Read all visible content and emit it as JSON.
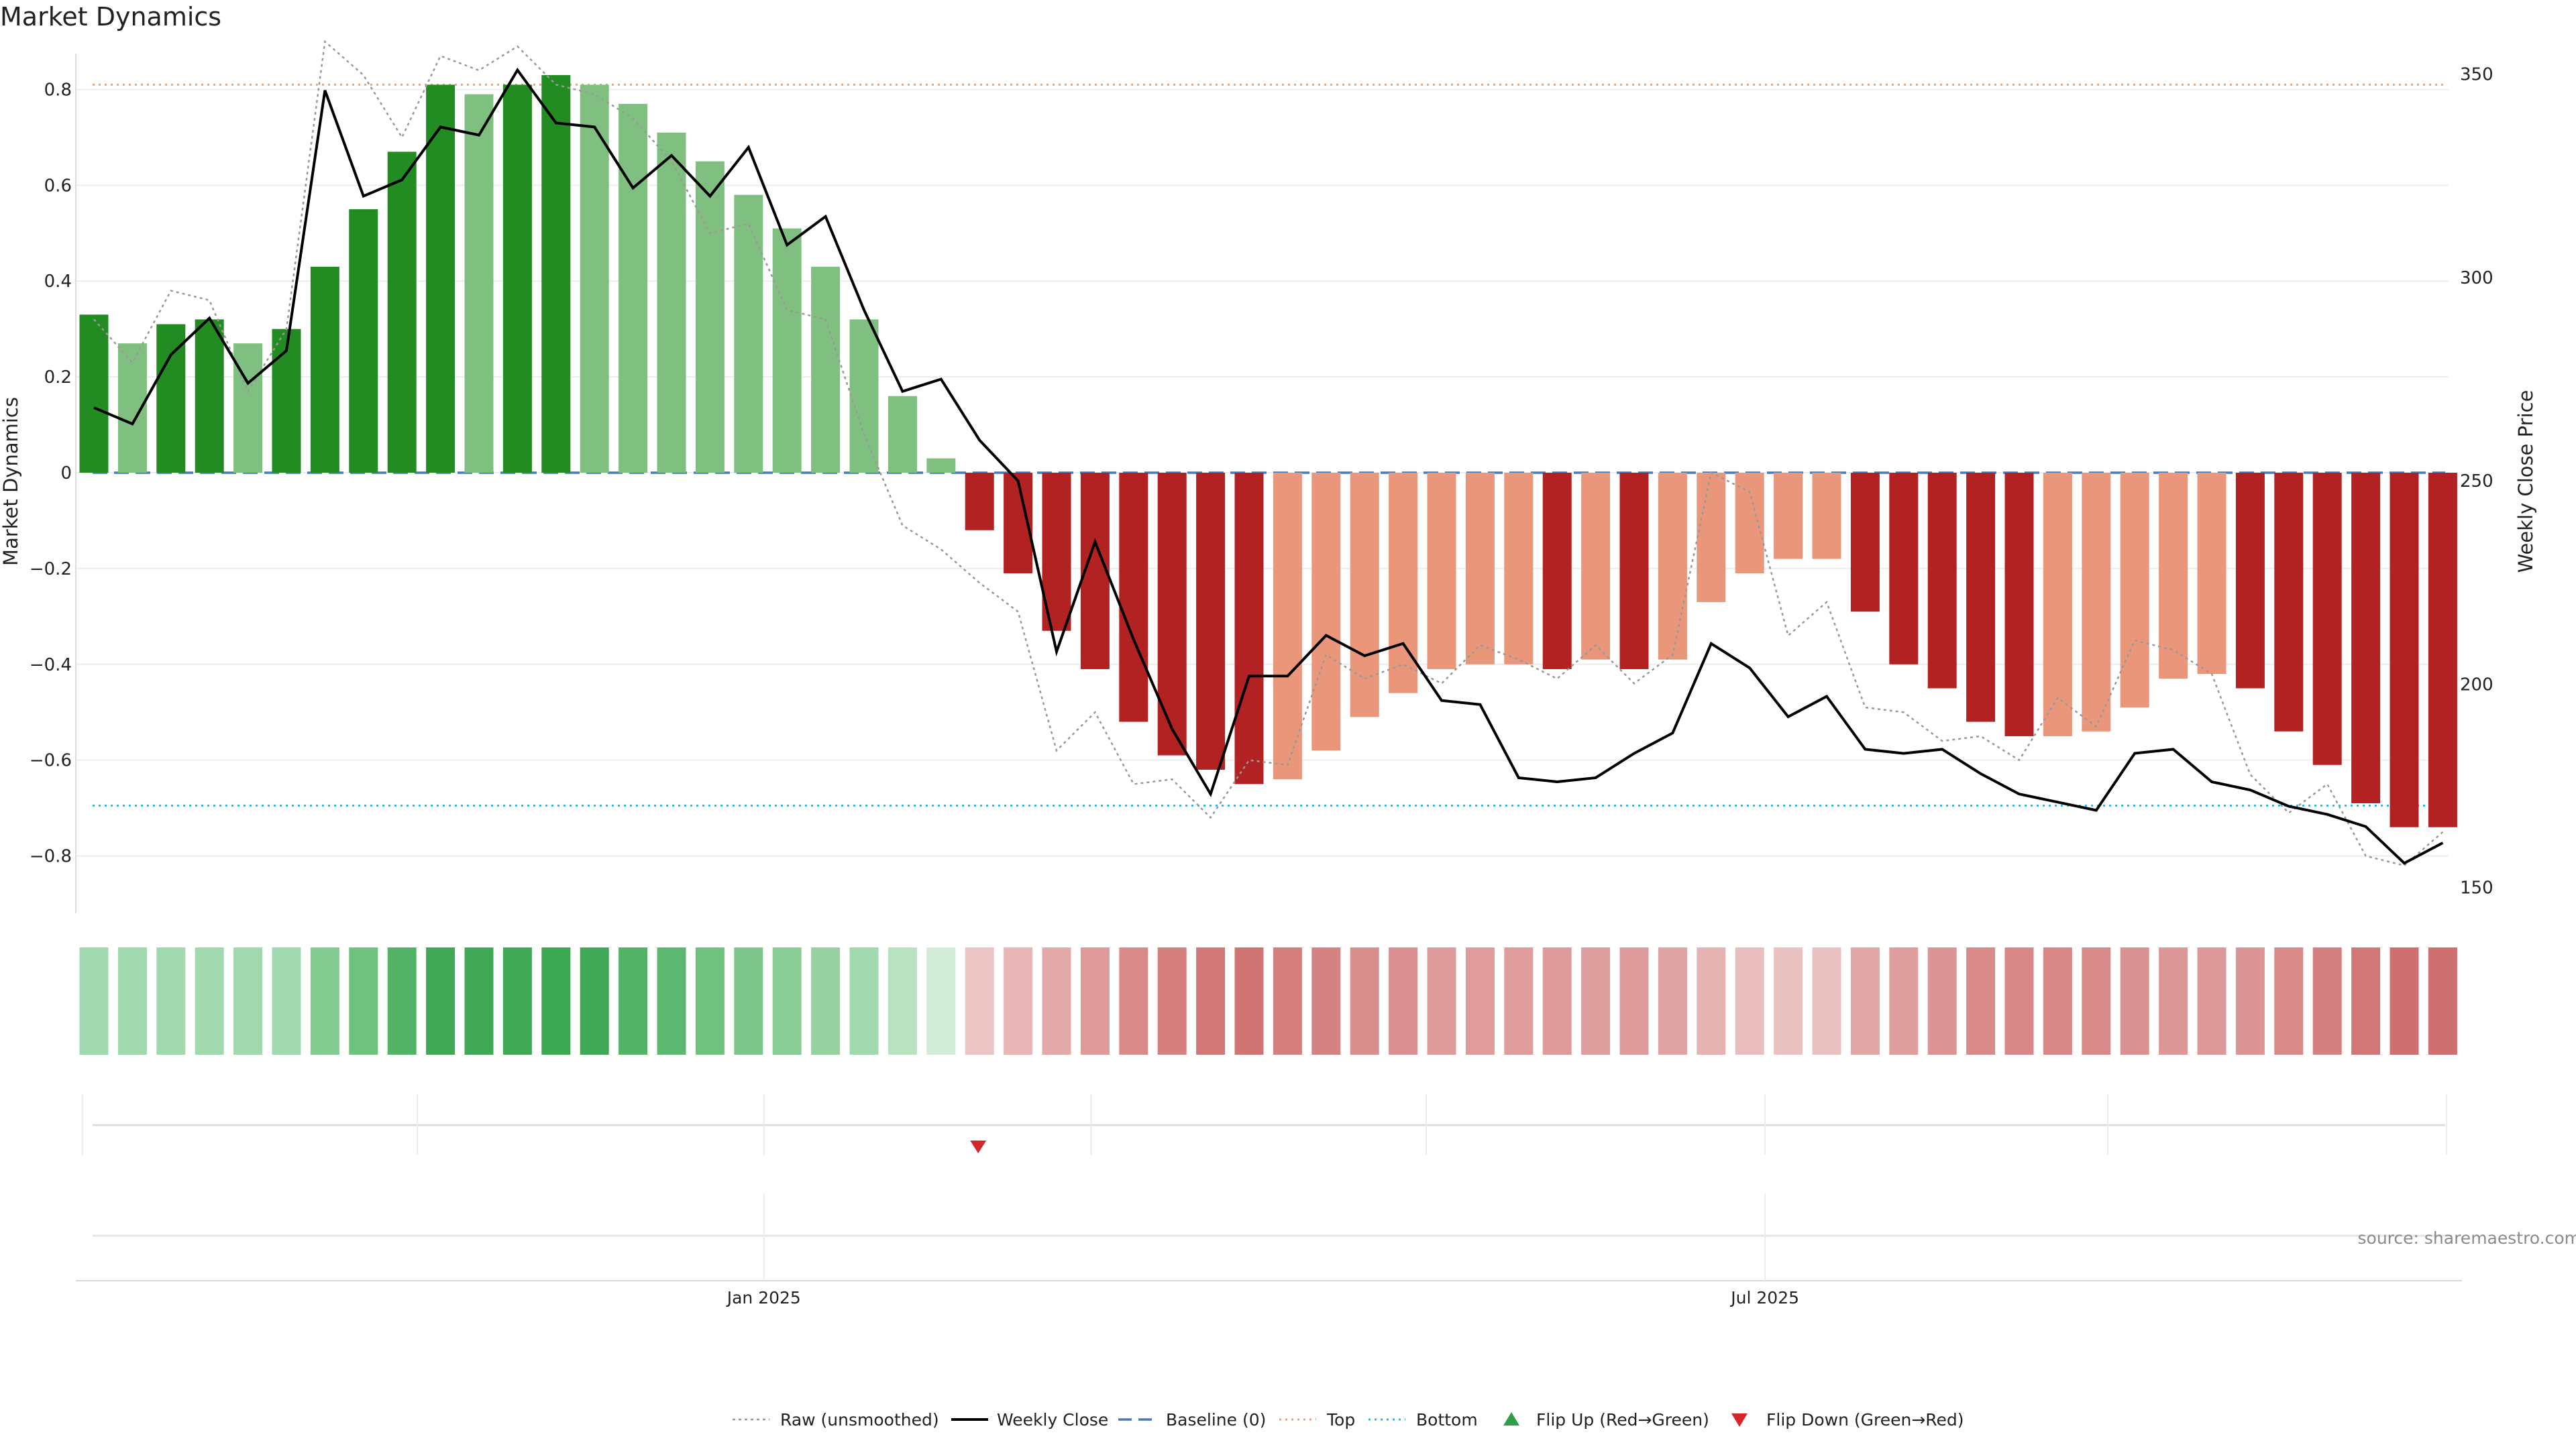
{
  "chart_data": {
    "type": "bar",
    "title": "Market Dynamics",
    "ylabel": "Market Dynamics",
    "y2label": "Weekly Close Price",
    "ylim": [
      -0.9,
      0.9
    ],
    "y2lim": [
      146,
      358
    ],
    "yticks": [
      -0.8,
      -0.6,
      -0.4,
      -0.2,
      0,
      0.2,
      0.4,
      0.6,
      0.8
    ],
    "ytick_labels": [
      "−0.8",
      "−0.6",
      "−0.4",
      "−0.2",
      "0",
      "0.2",
      "0.4",
      "0.6",
      "0.8"
    ],
    "y2ticks": [
      150,
      200,
      250,
      300,
      350
    ],
    "y2tick_labels": [
      "150",
      "200",
      "250",
      "300",
      "350"
    ],
    "x_tick_labels": [
      {
        "label": "Jan 2025",
        "index": 17.4
      },
      {
        "label": "Jul 2025",
        "index": 43.4
      }
    ],
    "monthly_gridline_positions": [
      -0.3,
      8.4,
      17.4,
      25.9,
      34.6,
      43.4,
      52.3,
      61.1
    ],
    "top_threshold": 0.81,
    "bottom_threshold": -0.695,
    "baseline": 0,
    "values": [
      0.33,
      0.27,
      0.31,
      0.32,
      0.27,
      0.3,
      0.43,
      0.55,
      0.67,
      0.81,
      0.79,
      0.81,
      0.83,
      0.81,
      0.77,
      0.71,
      0.65,
      0.58,
      0.51,
      0.43,
      0.32,
      0.16,
      0.03,
      -0.12,
      -0.21,
      -0.33,
      -0.41,
      -0.52,
      -0.59,
      -0.62,
      -0.65,
      -0.64,
      -0.58,
      -0.51,
      -0.46,
      -0.41,
      -0.4,
      -0.4,
      -0.41,
      -0.39,
      -0.41,
      -0.39,
      -0.27,
      -0.21,
      -0.18,
      -0.18,
      -0.29,
      -0.4,
      -0.45,
      -0.52,
      -0.55,
      -0.55,
      -0.54,
      -0.49,
      -0.43,
      -0.42,
      -0.45,
      -0.54,
      -0.61,
      -0.69,
      -0.74,
      -0.74
    ],
    "bar_colors": [
      "#228b22",
      "#7fbf7f",
      "#228b22",
      "#228b22",
      "#7fbf7f",
      "#228b22",
      "#228b22",
      "#228b22",
      "#228b22",
      "#228b22",
      "#7fbf7f",
      "#228b22",
      "#228b22",
      "#7fbf7f",
      "#7fbf7f",
      "#7fbf7f",
      "#7fbf7f",
      "#7fbf7f",
      "#7fbf7f",
      "#7fbf7f",
      "#7fbf7f",
      "#7fbf7f",
      "#7fbf7f",
      "#b22222",
      "#b22222",
      "#b22222",
      "#b22222",
      "#b22222",
      "#b22222",
      "#b22222",
      "#b22222",
      "#e9967a",
      "#e9967a",
      "#e9967a",
      "#e9967a",
      "#e9967a",
      "#e9967a",
      "#e9967a",
      "#b22222",
      "#e9967a",
      "#b22222",
      "#e9967a",
      "#e9967a",
      "#e9967a",
      "#e9967a",
      "#e9967a",
      "#b22222",
      "#b22222",
      "#b22222",
      "#b22222",
      "#b22222",
      "#e9967a",
      "#e9967a",
      "#e9967a",
      "#e9967a",
      "#e9967a",
      "#b22222",
      "#b22222",
      "#b22222",
      "#b22222",
      "#b22222",
      "#b22222"
    ],
    "raw_values": [
      0.32,
      0.23,
      0.38,
      0.36,
      0.17,
      0.3,
      0.9,
      0.83,
      0.7,
      0.87,
      0.84,
      0.89,
      0.81,
      0.79,
      0.74,
      0.65,
      0.5,
      0.52,
      0.34,
      0.32,
      0.08,
      -0.11,
      -0.16,
      -0.23,
      -0.29,
      -0.58,
      -0.5,
      -0.65,
      -0.64,
      -0.72,
      -0.6,
      -0.61,
      -0.38,
      -0.43,
      -0.4,
      -0.44,
      -0.36,
      -0.39,
      -0.43,
      -0.36,
      -0.44,
      -0.38,
      -0.0,
      -0.04,
      -0.34,
      -0.27,
      -0.49,
      -0.5,
      -0.56,
      -0.55,
      -0.6,
      -0.47,
      -0.53,
      -0.35,
      -0.37,
      -0.42,
      -0.63,
      -0.71,
      -0.65,
      -0.8,
      -0.82,
      -0.75
    ],
    "weekly_close": [
      268,
      264,
      281,
      290,
      274,
      282,
      346,
      320,
      324,
      337,
      335,
      351,
      338,
      337,
      322,
      330,
      320,
      332,
      308,
      315,
      292,
      272,
      275,
      260,
      250,
      208,
      235,
      211,
      189,
      173,
      202,
      202,
      212,
      207,
      210,
      196,
      195,
      177,
      176,
      177,
      183,
      188,
      210,
      204,
      192,
      197,
      184,
      183,
      184,
      178,
      173,
      171,
      169,
      183,
      184,
      176,
      174,
      170,
      168,
      165,
      156,
      161
    ],
    "heat_strip_colors": [
      "#a2d8ae",
      "#a2d8ae",
      "#a2d8ae",
      "#a2d8ae",
      "#a2d8ae",
      "#a2d8ae",
      "#84cb92",
      "#6fc17e",
      "#52b266",
      "#41a857",
      "#41a857",
      "#41a857",
      "#3ca854",
      "#41a857",
      "#52b266",
      "#5cb870",
      "#6fc17e",
      "#7ec68b",
      "#89cc95",
      "#97d1a1",
      "#a2d8ae",
      "#b8e2c2",
      "#d0ebd6",
      "#ebc4c4",
      "#e8b6b6",
      "#e4a9a9",
      "#de9999",
      "#d98b8b",
      "#d57f7f",
      "#d17777",
      "#d07373",
      "#d47e7e",
      "#d58282",
      "#d98e8e",
      "#da9090",
      "#dd9b9b",
      "#de9c9c",
      "#de9c9c",
      "#dd9b9b",
      "#de9e9e",
      "#dd9b9b",
      "#e0a3a3",
      "#e6b3b3",
      "#e9bebe",
      "#eac1c1",
      "#eac1c1",
      "#e2a8a8",
      "#df9e9e",
      "#db9595",
      "#d88a8a",
      "#d78787",
      "#d78787",
      "#d88a8a",
      "#da9191",
      "#dc9898",
      "#dd9999",
      "#db9595",
      "#d88a8a",
      "#d58080",
      "#d27777",
      "#cf7070",
      "#cf7070"
    ],
    "flip_down_index": 23.0,
    "legend": [
      "Raw (unsmoothed)",
      "Weekly Close",
      "Baseline (0)",
      "Top",
      "Bottom",
      "Flip Up (Red→Green)",
      "Flip Down (Green→Red)"
    ],
    "source": "source: sharemaestro.com"
  },
  "colors": {
    "green_strong": "#228b22",
    "green_light": "#7fbf7f",
    "red_strong": "#b22222",
    "red_light": "#e9967a",
    "baseline": "#4a7bb7",
    "top_line": "#e8a383",
    "bottom_line": "#39b6d2",
    "raw_line": "#999999",
    "close_line": "#000000",
    "flip_up": "#2e9e48",
    "flip_down": "#d62728"
  }
}
